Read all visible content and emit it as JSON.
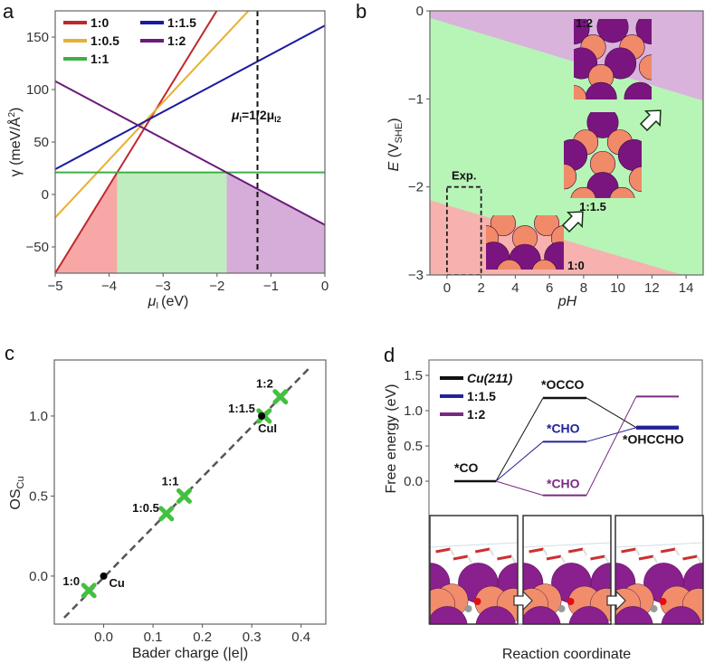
{
  "chart_data": [
    {
      "panel": "a",
      "type": "line",
      "xlabel": "μI (eV)",
      "ylabel": "γ (meV/Å²)",
      "xlim": [
        -5,
        0
      ],
      "ylim": [
        -75,
        175
      ],
      "xticks": [
        "−5",
        "−4",
        "−3",
        "−2",
        "−1",
        "0"
      ],
      "xtick_values": [
        -5,
        -4,
        -3,
        -2,
        -1,
        0
      ],
      "yticks": [
        "−50",
        "0",
        "50",
        "100",
        "150"
      ],
      "ytick_values": [
        -50,
        0,
        50,
        100,
        150
      ],
      "series": [
        {
          "name": "1:0",
          "color": "#c0282d",
          "points": [
            [
              -5,
              -75
            ],
            [
              0,
              342.5
            ]
          ]
        },
        {
          "name": "1:0.5",
          "color": "#e8b030",
          "points": [
            [
              -5,
              -22
            ],
            [
              0,
              253
            ]
          ]
        },
        {
          "name": "1:1",
          "color": "#3cb043",
          "points": [
            [
              -5,
              21
            ],
            [
              0,
              21
            ]
          ]
        },
        {
          "name": "1:1.5",
          "color": "#1a1a9e",
          "points": [
            [
              -5,
              24
            ],
            [
              0,
              161
            ]
          ]
        },
        {
          "name": "1:2",
          "color": "#6a1a7a",
          "points": [
            [
              -5,
              108
            ],
            [
              0,
              -29
            ]
          ]
        }
      ],
      "regions": [
        {
          "name": "1:0",
          "x_range": [
            -5,
            -3.85
          ],
          "color": "#f7a8a6"
        },
        {
          "name": "1:1",
          "x_range": [
            -3.85,
            -1.82
          ],
          "color": "#bfedbf"
        },
        {
          "name": "1:2",
          "x_range": [
            -1.82,
            0
          ],
          "color": "#d6acd8"
        }
      ],
      "vline": {
        "x": -1.25,
        "label": "μI=1/2μI2"
      },
      "legend": {
        "placement": "top-left",
        "entries": [
          "1:0",
          "1:0.5",
          "1:1",
          "1:1.5",
          "1:2"
        ]
      }
    },
    {
      "panel": "b",
      "type": "area",
      "xlabel": "pH",
      "ylabel": "E (VSHE)",
      "xlim": [
        -1,
        15
      ],
      "ylim": [
        -3,
        0
      ],
      "xticks": [
        "0",
        "2",
        "4",
        "6",
        "8",
        "10",
        "12",
        "14"
      ],
      "xtick_values": [
        0,
        2,
        4,
        6,
        8,
        10,
        12,
        14
      ],
      "yticks": [
        "−3",
        "−2",
        "−1",
        "0"
      ],
      "ytick_values": [
        -3,
        -2,
        -1,
        0
      ],
      "boundaries": [
        {
          "between": [
            "1:2",
            "1:1.5"
          ],
          "points": [
            [
              -1,
              -0.08
            ],
            [
              15,
              -1.02
            ]
          ]
        },
        {
          "between": [
            "1:1.5",
            "1:0"
          ],
          "points": [
            [
              -1,
              -2.15
            ],
            [
              13.8,
              -3
            ]
          ]
        }
      ],
      "regions": [
        {
          "name": "1:2",
          "color": "#d9b3dc"
        },
        {
          "name": "1:1.5",
          "color": "#b7f5b7"
        },
        {
          "name": "1:0",
          "color": "#f7b1ae"
        }
      ],
      "annotations": {
        "exp_box": {
          "label": "Exp.",
          "x_range": [
            0,
            2
          ],
          "y_range": [
            -3,
            -2
          ]
        },
        "labels": [
          "1:2",
          "1:1.5",
          "1:0"
        ]
      }
    },
    {
      "panel": "c",
      "type": "scatter",
      "xlabel": "Bader charge (|e|)",
      "ylabel": "OSCu",
      "xlim": [
        -0.1,
        0.45
      ],
      "ylim": [
        -0.3,
        1.35
      ],
      "xticks": [
        "0.0",
        "0.1",
        "0.2",
        "0.3",
        "0.4"
      ],
      "xtick_values": [
        0,
        0.1,
        0.2,
        0.3,
        0.4
      ],
      "yticks": [
        "0.0",
        "0.5",
        "1.0"
      ],
      "ytick_values": [
        0,
        0.5,
        1.0
      ],
      "fit_line": [
        [
          -0.08,
          -0.26
        ],
        [
          0.42,
          1.31
        ]
      ],
      "points": [
        {
          "label": "1:0",
          "x": -0.03,
          "y": -0.09,
          "marker": "cross",
          "color": "#44c040"
        },
        {
          "label": "1:0.5",
          "x": 0.127,
          "y": 0.39,
          "marker": "cross",
          "color": "#44c040"
        },
        {
          "label": "1:1",
          "x": 0.163,
          "y": 0.5,
          "marker": "cross",
          "color": "#44c040"
        },
        {
          "label": "1:1.5",
          "x": 0.325,
          "y": 1.0,
          "marker": "cross",
          "color": "#44c040"
        },
        {
          "label": "1:2",
          "x": 0.358,
          "y": 1.12,
          "marker": "cross",
          "color": "#44c040"
        },
        {
          "label": "Cu",
          "x": 0.0,
          "y": 0.0,
          "marker": "dot",
          "color": "#000000"
        },
        {
          "label": "CuI",
          "x": 0.32,
          "y": 1.0,
          "marker": "dot",
          "color": "#000000"
        }
      ]
    },
    {
      "panel": "d",
      "type": "line",
      "xlabel": "Reaction coordinate",
      "ylabel": "Free energy (eV)",
      "ylim": [
        -0.49,
        1.72
      ],
      "yticks": [
        "0.0",
        "0.5",
        "1.0",
        "1.5"
      ],
      "ytick_values": [
        0,
        0.5,
        1.0,
        1.5
      ],
      "steps": 3,
      "series": [
        {
          "name": "Cu(211)",
          "color": "#111111",
          "levels": [
            0,
            1.18,
            0.76
          ],
          "labels": [
            "*CO",
            "*OCCO",
            "*OHCCHO"
          ]
        },
        {
          "name": "1:1.5",
          "color": "#22229a",
          "levels": [
            0,
            0.56,
            0.76
          ],
          "labels": [
            "",
            "*CHO",
            ""
          ]
        },
        {
          "name": "1:2",
          "color": "#7a2a82",
          "levels": [
            0,
            -0.2,
            1.2
          ],
          "labels": [
            "",
            "*CHO",
            ""
          ]
        }
      ],
      "legend": {
        "placement": "top-left",
        "entries": [
          "Cu(211)",
          "1:1.5",
          "1:2"
        ]
      }
    }
  ],
  "labels": {
    "panel_a": "a",
    "panel_b": "b",
    "panel_c": "c",
    "panel_d": "d",
    "b_ylabel_main": "E",
    "b_ylabel_sub": "SHE",
    "c_ylabel_main": "OS",
    "c_ylabel_sub": "Cu",
    "a_xlabel": "μ",
    "a_xlabel_sub": "I",
    "a_xlabel_unit": "(eV)",
    "a_ylabel": "γ (meV/Å",
    "vline_label": "μ",
    "vline_sub1": "I",
    "vline_mid": "=1/2μ",
    "vline_sub2": "I2",
    "b_xlabel": "pH",
    "exp_label": "Exp.",
    "c_xlabel": "Bader charge (|e|)",
    "d_xlabel": "Reaction coordinate",
    "d_ylabel": "Free energy (eV)"
  }
}
